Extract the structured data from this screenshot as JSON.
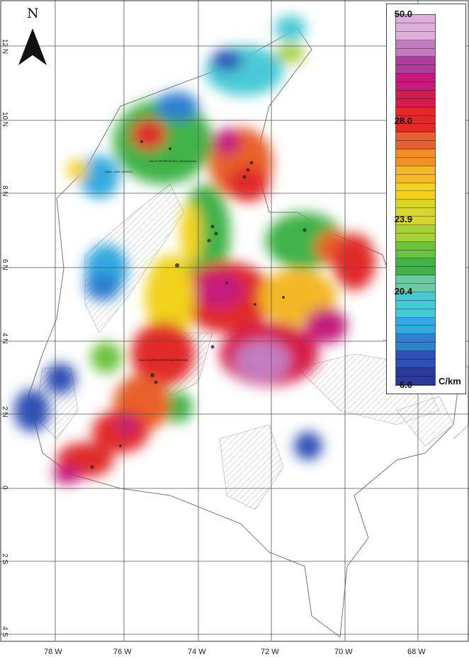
{
  "map": {
    "north_label": "N",
    "lon_labels": [
      "78 W",
      "76 W",
      "74 W",
      "72 W",
      "70 W",
      "68 W"
    ],
    "lat_labels": [
      "12 N",
      "10 N",
      "8 N",
      "6 N",
      "4 N",
      "2 N",
      "0",
      "2 S",
      "4 S"
    ],
    "region_labels": [
      "VALLE INFERIOR DEL MAGDALENA",
      "SINU - SAN JACINTO",
      "VALLE SUPERIOR DEL MAGDALENA"
    ]
  },
  "legend": {
    "ticks": [
      "50.0",
      "28.0",
      "23.9",
      "20.4",
      "6.0"
    ],
    "unit": "C/km",
    "colors": [
      "#2b3a9a",
      "#2f4fb5",
      "#2e7fd0",
      "#33a9e0",
      "#48c9d6",
      "#6cc9a4",
      "#3fb24a",
      "#6cc23c",
      "#a9cf3a",
      "#d8d62e",
      "#f2d21f",
      "#f4b726",
      "#f0902a",
      "#e8612c",
      "#e02a2a",
      "#d51b4b",
      "#c51b7d",
      "#b23c9c",
      "#c57bc0",
      "#dcb0da"
    ]
  },
  "chart_data": {
    "type": "heatmap",
    "title": "",
    "colorbar": {
      "min": 6.0,
      "max": 50.0,
      "unit": "C/km",
      "tick_labels": [
        "50.0",
        "28.0",
        "23.9",
        "20.4",
        "6.0"
      ]
    },
    "x_axis": [
      "78 W",
      "76 W",
      "74 W",
      "72 W",
      "70 W",
      "68 W"
    ],
    "y_axis": [
      "12 N",
      "10 N",
      "8 N",
      "6 N",
      "4 N",
      "2 N",
      "0",
      "2 S",
      "4 S"
    ]
  }
}
